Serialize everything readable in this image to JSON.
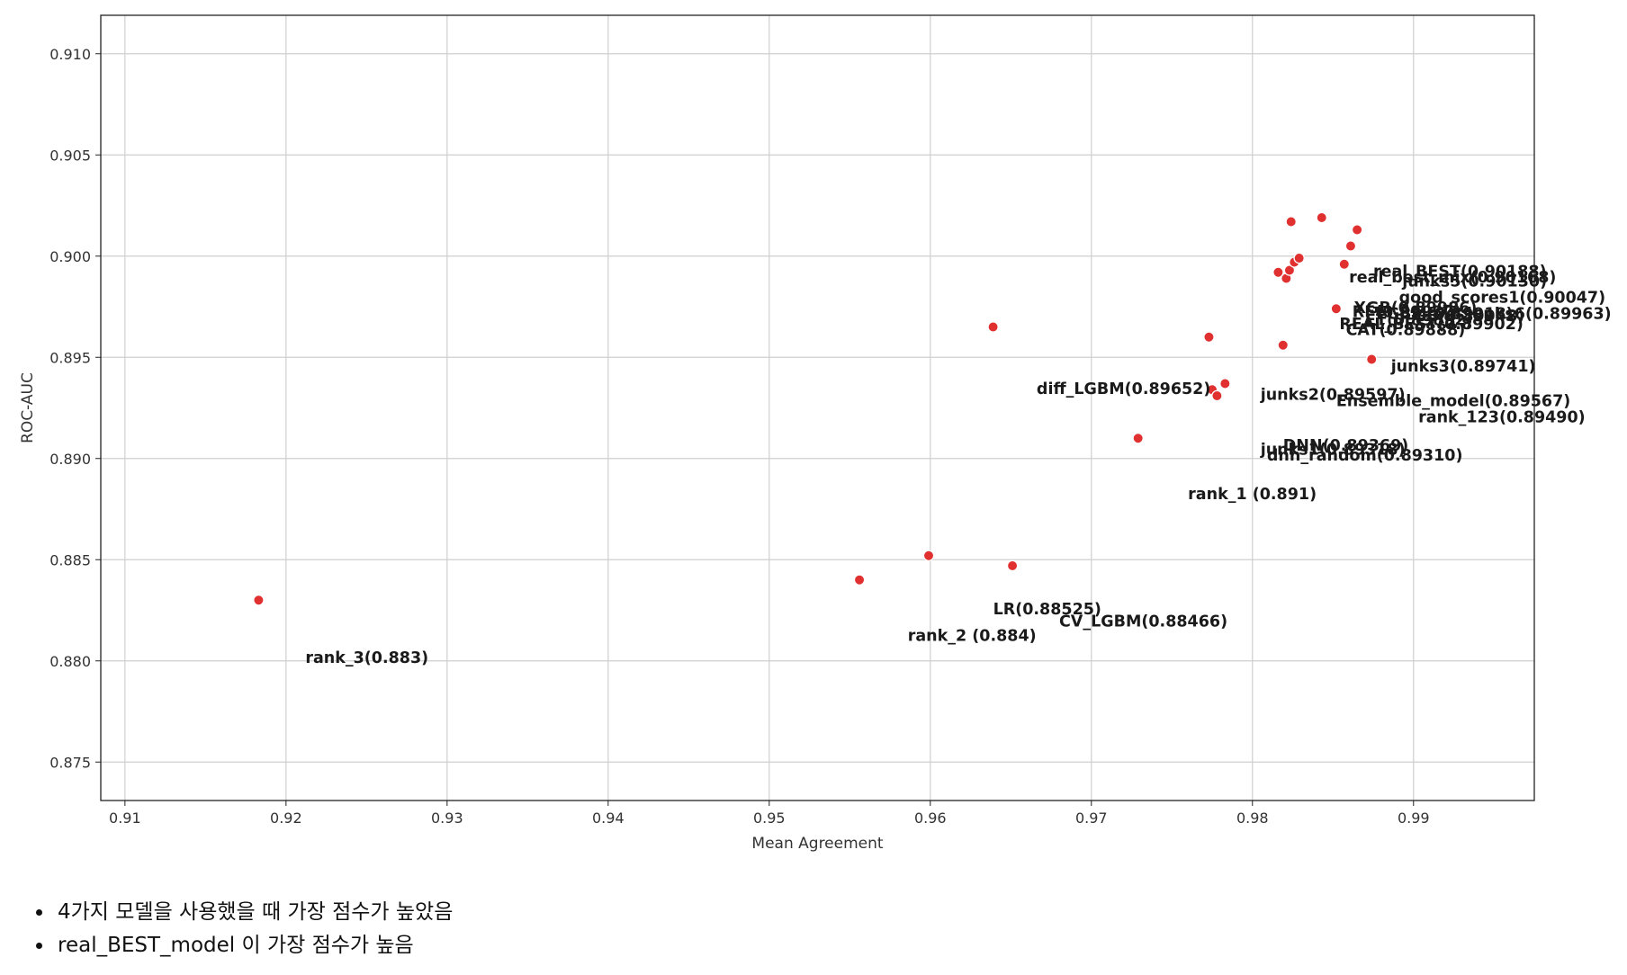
{
  "chart_data": {
    "type": "scatter",
    "xlabel": "Mean Agreement",
    "ylabel": "ROC-AUC",
    "xlim": [
      0.9085,
      0.9975
    ],
    "ylim": [
      0.8731,
      0.9119
    ],
    "x_ticks": [
      0.91,
      0.92,
      0.93,
      0.94,
      0.95,
      0.96,
      0.97,
      0.98,
      0.99
    ],
    "x_tick_labels": [
      "0.91",
      "0.92",
      "0.93",
      "0.94",
      "0.95",
      "0.96",
      "0.97",
      "0.98",
      "0.99"
    ],
    "y_ticks": [
      0.875,
      0.88,
      0.885,
      0.89,
      0.895,
      0.9,
      0.905,
      0.91
    ],
    "y_tick_labels": [
      "0.875",
      "0.880",
      "0.885",
      "0.890",
      "0.895",
      "0.900",
      "0.905",
      "0.910"
    ],
    "grid": true,
    "marker_color": "#e03030",
    "points": [
      {
        "x": 0.9183,
        "y": 0.883
      },
      {
        "x": 0.9556,
        "y": 0.884
      },
      {
        "x": 0.9599,
        "y": 0.8852
      },
      {
        "x": 0.9651,
        "y": 0.8847
      },
      {
        "x": 0.9639,
        "y": 0.8965
      },
      {
        "x": 0.9729,
        "y": 0.891
      },
      {
        "x": 0.9773,
        "y": 0.896
      },
      {
        "x": 0.9775,
        "y": 0.8934
      },
      {
        "x": 0.9778,
        "y": 0.8931
      },
      {
        "x": 0.9783,
        "y": 0.8937
      },
      {
        "x": 0.9816,
        "y": 0.8992
      },
      {
        "x": 0.9819,
        "y": 0.8956
      },
      {
        "x": 0.9821,
        "y": 0.8989
      },
      {
        "x": 0.9823,
        "y": 0.8993
      },
      {
        "x": 0.9824,
        "y": 0.9017
      },
      {
        "x": 0.9826,
        "y": 0.8997
      },
      {
        "x": 0.9829,
        "y": 0.8999
      },
      {
        "x": 0.9843,
        "y": 0.9019
      },
      {
        "x": 0.9852,
        "y": 0.8974
      },
      {
        "x": 0.9857,
        "y": 0.8996
      },
      {
        "x": 0.9861,
        "y": 0.9005
      },
      {
        "x": 0.9865,
        "y": 0.9013
      },
      {
        "x": 0.9874,
        "y": 0.8949
      }
    ],
    "labels": [
      {
        "text": "rank_3(0.883)",
        "x": 0.9212,
        "y": 0.8799
      },
      {
        "text": "rank_2 (0.884)",
        "x": 0.9586,
        "y": 0.881
      },
      {
        "text": "LR(0.88525)",
        "x": 0.9639,
        "y": 0.8823
      },
      {
        "text": "CV_LGBM(0.88466)",
        "x": 0.968,
        "y": 0.8817
      },
      {
        "text": "rank_1 (0.891)",
        "x": 0.976,
        "y": 0.888
      },
      {
        "text": "diff_LGBM(0.89652)",
        "x": 0.9666,
        "y": 0.8932
      },
      {
        "text": "junks2(0.89597)",
        "x": 0.9805,
        "y": 0.8929
      },
      {
        "text": "Ensemble_model(0.89567)",
        "x": 0.9852,
        "y": 0.8926
      },
      {
        "text": "rank_123(0.89490)",
        "x": 0.9903,
        "y": 0.8918
      },
      {
        "text": "junks3(0.89741)",
        "x": 0.9886,
        "y": 0.8943
      },
      {
        "text": "DNN(0.89369)",
        "x": 0.9819,
        "y": 0.8904
      },
      {
        "text": "junks1(0.89318)",
        "x": 0.9805,
        "y": 0.8902
      },
      {
        "text": "dnn_random(0.89310)",
        "x": 0.9809,
        "y": 0.8899
      },
      {
        "text": "real_BEST(0.90188)",
        "x": 0.9875,
        "y": 0.899
      },
      {
        "text": "real_best_mix(0.90168)",
        "x": 0.986,
        "y": 0.8987
      },
      {
        "text": "junks5(0.90130)",
        "x": 0.9893,
        "y": 0.8985
      },
      {
        "text": "good_scores1(0.90047)",
        "x": 0.9891,
        "y": 0.8977
      },
      {
        "text": "XGB(0.89986)",
        "x": 0.9863,
        "y": 0.8972
      },
      {
        "text": "junks6(0.89963)",
        "x": 0.9933,
        "y": 0.8969
      },
      {
        "text": "RF(0.89930)",
        "x": 0.9862,
        "y": 0.897
      },
      {
        "text": "LGBM(0.89918)",
        "x": 0.9877,
        "y": 0.8969
      },
      {
        "text": "ET(0.89892)",
        "x": 0.987,
        "y": 0.8966
      },
      {
        "text": "GB(0.89948)",
        "x": 0.99,
        "y": 0.8968
      },
      {
        "text": "REAL_BEST(0.89902)",
        "x": 0.9854,
        "y": 0.8964
      },
      {
        "text": "CAT(0.89888)",
        "x": 0.9858,
        "y": 0.8961
      }
    ]
  },
  "notes": [
    "4가지 모델을 사용했을 때 가장 점수가 높았음",
    "real_BEST_model 이 가장 점수가 높음"
  ]
}
